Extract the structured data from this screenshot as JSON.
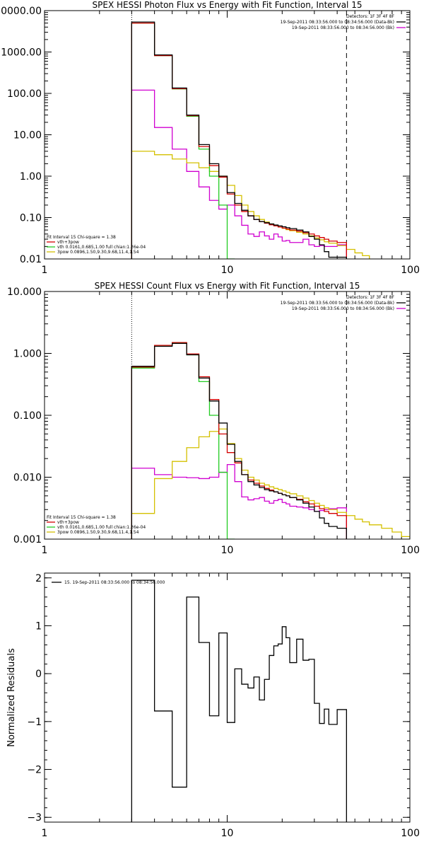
{
  "colors": {
    "data": "#000000",
    "total_fit": "#d40000",
    "thermal": "#22cc22",
    "powerlaw": "#d4c000",
    "background": "#d000d0",
    "frame": "#000000"
  },
  "chart_data": [
    {
      "id": "photon",
      "type": "line",
      "step": true,
      "title": "SPEX HESSI Photon Flux vs Energy with Fit Function, Interval 15",
      "xlabel": "",
      "ylabel": "",
      "xscale": "log",
      "yscale": "log",
      "xlim": [
        1,
        100
      ],
      "ylim": [
        0.01,
        10000
      ],
      "x_ticks": [
        {
          "v": 1,
          "label": "1"
        },
        {
          "v": 10,
          "label": "10"
        },
        {
          "v": 100,
          "label": "100"
        }
      ],
      "y_ticks": [
        {
          "v": 0.01,
          "label": "0.01"
        },
        {
          "v": 0.1,
          "label": "0.10"
        },
        {
          "v": 1,
          "label": "1.00"
        },
        {
          "v": 10,
          "label": "10.00"
        },
        {
          "v": 100,
          "label": "100.00"
        },
        {
          "v": 1000,
          "label": "1000.00"
        },
        {
          "v": 10000,
          "label": "10000.00"
        }
      ],
      "vlines": [
        {
          "x": 3,
          "style": "dotted"
        },
        {
          "x": 45,
          "style": "dashed"
        }
      ],
      "legend_top": {
        "position": "top-right",
        "lines": [
          {
            "text": "Detectors: 1F 3F 4F 8F",
            "color": ""
          },
          {
            "text": "19-Sep-2011 08:33:56.000 to 08:34:56.000 (Data-Bk)",
            "color": "#000000"
          },
          {
            "text": "19-Sep-2011 08:33:56.000 to 08:34:56.000 (Bk)",
            "color": "#d000d0"
          }
        ]
      },
      "legend_bottom": {
        "position": "bottom-left",
        "lines": [
          {
            "text": "Fit Interval 15   Chi-square = 1.38",
            "color": ""
          },
          {
            "text": "vth+3pow",
            "color": "#d40000"
          },
          {
            "text": "vth 0.0161,0.685,1.00  full chian:1.26e-04",
            "color": "#22cc22"
          },
          {
            "text": "3pow 0.0896,1.50,9.30,9.68,11.4,1.54",
            "color": "#d4c000"
          }
        ]
      },
      "edges": [
        3,
        4,
        5,
        6,
        7,
        8,
        9,
        10,
        11,
        12,
        13,
        14,
        15,
        16,
        17,
        18,
        19,
        20,
        21,
        22,
        24,
        26,
        28,
        30,
        32,
        34,
        36,
        40,
        45
      ],
      "series": [
        {
          "key": "data",
          "values": [
            5300,
            850,
            135,
            30,
            5.8,
            2.0,
            1.0,
            0.4,
            0.22,
            0.15,
            0.11,
            0.09,
            0.08,
            0.075,
            0.07,
            0.066,
            0.063,
            0.06,
            0.057,
            0.054,
            0.05,
            0.045,
            0.035,
            0.03,
            0.022,
            0.015,
            0.011,
            0.011
          ]
        },
        {
          "key": "total_fit",
          "values": [
            5000,
            820,
            130,
            29,
            5.2,
            1.8,
            0.95,
            0.37,
            0.2,
            0.14,
            0.11,
            0.09,
            0.08,
            0.073,
            0.067,
            0.063,
            0.059,
            0.056,
            0.053,
            0.05,
            0.047,
            0.043,
            0.04,
            0.036,
            0.033,
            0.03,
            0.027,
            0.025
          ]
        },
        {
          "key": "thermal",
          "values": [
            5000,
            820,
            128,
            28,
            4.5,
            1.0,
            0.2,
            0.01
          ]
        },
        {
          "key": "powerlaw",
          "edges": [
            3,
            4,
            5,
            6,
            7,
            8,
            9,
            10,
            11,
            12,
            13,
            14,
            15,
            16,
            17,
            18,
            19,
            20,
            21,
            22,
            24,
            26,
            28,
            30,
            32,
            34,
            36,
            40,
            45,
            50,
            55,
            60
          ],
          "values": [
            4.0,
            3.3,
            2.6,
            2.1,
            1.6,
            1.3,
            1.0,
            0.6,
            0.34,
            0.2,
            0.14,
            0.11,
            0.09,
            0.078,
            0.07,
            0.064,
            0.059,
            0.055,
            0.051,
            0.048,
            0.044,
            0.04,
            0.036,
            0.032,
            0.029,
            0.026,
            0.024,
            0.021,
            0.017,
            0.014,
            0.012
          ]
        },
        {
          "key": "background",
          "values": [
            120,
            15,
            4.5,
            1.3,
            0.55,
            0.26,
            0.16,
            0.2,
            0.11,
            0.065,
            0.04,
            0.035,
            0.045,
            0.036,
            0.03,
            0.04,
            0.034,
            0.027,
            0.028,
            0.025,
            0.025,
            0.03,
            0.022,
            0.02,
            0.021,
            0.02,
            0.02,
            0.022
          ]
        }
      ]
    },
    {
      "id": "count",
      "type": "line",
      "step": true,
      "title": "SPEX HESSI Count Flux vs Energy with Fit Function, Interval 15",
      "xlabel": "",
      "ylabel": "",
      "xscale": "log",
      "yscale": "log",
      "xlim": [
        1,
        100
      ],
      "ylim": [
        0.001,
        10
      ],
      "x_ticks": [
        {
          "v": 1,
          "label": "1"
        },
        {
          "v": 10,
          "label": "10"
        },
        {
          "v": 100,
          "label": "100"
        }
      ],
      "y_ticks": [
        {
          "v": 0.001,
          "label": "0.001"
        },
        {
          "v": 0.01,
          "label": "0.010"
        },
        {
          "v": 0.1,
          "label": "0.100"
        },
        {
          "v": 1,
          "label": "1.000"
        },
        {
          "v": 10,
          "label": "10.000"
        }
      ],
      "vlines": [
        {
          "x": 3,
          "style": "dotted"
        },
        {
          "x": 45,
          "style": "dashed"
        }
      ],
      "legend_top": {
        "position": "top-right",
        "lines": [
          {
            "text": "Detectors: 1F 3F 4F 8F",
            "color": ""
          },
          {
            "text": "19-Sep-2011 08:33:56.000 to 08:34:56.000 (Data-Bk)",
            "color": "#000000"
          },
          {
            "text": "19-Sep-2011 08:33:56.000 to 08:34:56.000 (Bk)",
            "color": "#d000d0"
          }
        ]
      },
      "legend_bottom": {
        "position": "bottom-left",
        "lines": [
          {
            "text": "Fit Interval 15   Chi-square = 1.38",
            "color": ""
          },
          {
            "text": "vth+3pow",
            "color": "#d40000"
          },
          {
            "text": "vth 0.0161,0.685,1.00  full chian:1.26e-04",
            "color": "#22cc22"
          },
          {
            "text": "3pow 0.0896,1.50,9.30,9.68,11.4,1.54",
            "color": "#d4c000"
          }
        ]
      },
      "edges": [
        3,
        4,
        5,
        6,
        7,
        8,
        9,
        10,
        11,
        12,
        13,
        14,
        15,
        16,
        17,
        18,
        19,
        20,
        21,
        22,
        24,
        26,
        28,
        30,
        32,
        34,
        36,
        40,
        45
      ],
      "series": [
        {
          "key": "data",
          "values": [
            0.62,
            1.3,
            1.45,
            0.95,
            0.4,
            0.17,
            0.075,
            0.034,
            0.018,
            0.011,
            0.0085,
            0.0075,
            0.0068,
            0.0063,
            0.006,
            0.0058,
            0.0055,
            0.0052,
            0.005,
            0.0047,
            0.0043,
            0.0038,
            0.0033,
            0.0028,
            0.0022,
            0.0018,
            0.0016,
            0.0015
          ]
        },
        {
          "key": "total_fit",
          "values": [
            0.6,
            1.35,
            1.5,
            0.98,
            0.42,
            0.18,
            0.05,
            0.025,
            0.017,
            0.011,
            0.009,
            0.008,
            0.0072,
            0.0066,
            0.0062,
            0.0058,
            0.0055,
            0.0052,
            0.005,
            0.0047,
            0.0044,
            0.004,
            0.0037,
            0.0034,
            0.0031,
            0.0028,
            0.0026,
            0.0024
          ]
        },
        {
          "key": "thermal",
          "values": [
            0.58,
            1.35,
            1.48,
            0.95,
            0.35,
            0.1,
            0.012,
            0.001
          ]
        },
        {
          "key": "powerlaw",
          "edges": [
            3,
            4,
            5,
            6,
            7,
            8,
            9,
            10,
            11,
            12,
            13,
            14,
            15,
            16,
            17,
            18,
            19,
            20,
            21,
            22,
            24,
            26,
            28,
            30,
            32,
            34,
            36,
            40,
            45,
            50,
            55,
            60,
            70,
            80,
            90,
            100
          ],
          "values": [
            0.0026,
            0.0095,
            0.018,
            0.03,
            0.045,
            0.055,
            0.06,
            0.035,
            0.02,
            0.013,
            0.01,
            0.009,
            0.008,
            0.0075,
            0.007,
            0.0066,
            0.0063,
            0.006,
            0.0057,
            0.0054,
            0.005,
            0.0046,
            0.0042,
            0.0038,
            0.0035,
            0.0032,
            0.003,
            0.0027,
            0.0024,
            0.0021,
            0.0019,
            0.0017,
            0.0015,
            0.0013,
            0.0011
          ]
        },
        {
          "key": "background",
          "values": [
            0.014,
            0.011,
            0.01,
            0.0098,
            0.0095,
            0.01,
            0.012,
            0.016,
            0.0085,
            0.0048,
            0.0043,
            0.0045,
            0.0047,
            0.0041,
            0.0038,
            0.0042,
            0.0044,
            0.0039,
            0.0037,
            0.0034,
            0.0033,
            0.0032,
            0.003,
            0.0028,
            0.0029,
            0.003,
            0.0031,
            0.0032
          ]
        }
      ]
    },
    {
      "id": "residuals",
      "type": "line",
      "step": true,
      "title": "",
      "xlabel": "",
      "ylabel": "Normalized Residuals",
      "xscale": "log",
      "yscale": "linear",
      "xlim": [
        1,
        100
      ],
      "ylim": [
        -3.1,
        2.1
      ],
      "x_ticks": [
        {
          "v": 1,
          "label": "1"
        },
        {
          "v": 10,
          "label": "10"
        },
        {
          "v": 100,
          "label": "100"
        }
      ],
      "y_ticks": [
        {
          "v": -3,
          "label": "−3"
        },
        {
          "v": -2,
          "label": "−2"
        },
        {
          "v": -1,
          "label": "−1"
        },
        {
          "v": 0,
          "label": "0"
        },
        {
          "v": 1,
          "label": "1"
        },
        {
          "v": 2,
          "label": "2"
        }
      ],
      "vlines": [],
      "legend_top": {
        "position": "top-left",
        "lines": [
          {
            "text": "15. 19-Sep-2011 08:33:56.000 to 08:34:56.000",
            "color": "#000000"
          }
        ]
      },
      "legend_bottom": {
        "position": "bottom-left",
        "lines": []
      },
      "edges": [
        3,
        4,
        5,
        6,
        7,
        8,
        9,
        10,
        11,
        12,
        13,
        14,
        15,
        16,
        17,
        18,
        19,
        20,
        21,
        22,
        24,
        26,
        28,
        30,
        32,
        34,
        36,
        40,
        45
      ],
      "series": [
        {
          "key": "data",
          "values": [
            1.95,
            -0.78,
            -2.37,
            1.6,
            0.65,
            -0.88,
            0.85,
            -1.02,
            0.1,
            -0.22,
            -0.3,
            -0.07,
            -0.55,
            -0.12,
            0.38,
            0.58,
            0.62,
            0.98,
            0.75,
            0.23,
            0.72,
            0.28,
            0.3,
            -0.62,
            -1.04,
            -0.74,
            -1.06,
            -0.75
          ]
        }
      ]
    }
  ]
}
